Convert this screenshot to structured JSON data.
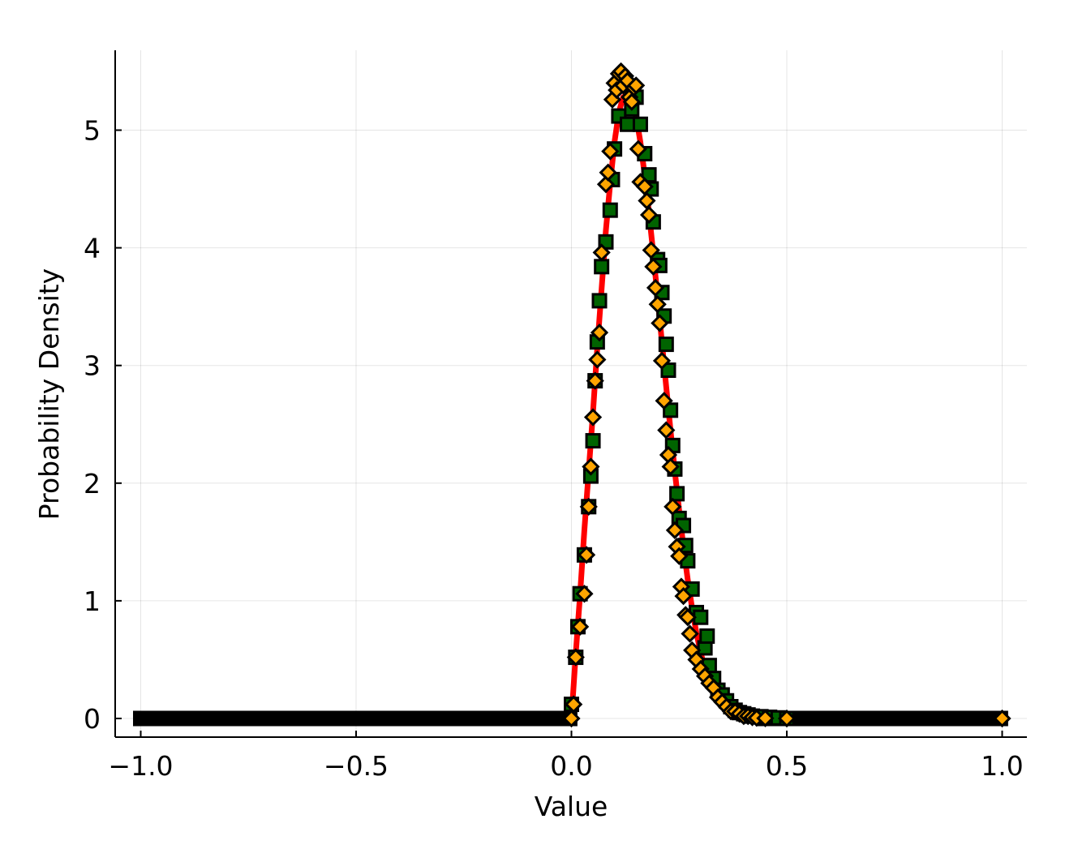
{
  "chart_data": {
    "type": "scatter",
    "title": "",
    "xlabel": "Value",
    "ylabel": "Probability Density",
    "xlim": [
      -1.06,
      1.06
    ],
    "ylim": [
      -0.16,
      5.65
    ],
    "x_ticks": [
      -1.0,
      -0.5,
      0.0,
      0.5,
      1.0
    ],
    "x_tick_labels": [
      "−1.0",
      "−0.5",
      "0.0",
      "0.5",
      "1.0"
    ],
    "y_ticks": [
      0,
      1,
      2,
      3,
      4,
      5
    ],
    "y_tick_labels": [
      "0",
      "1",
      "2",
      "3",
      "4",
      "5"
    ],
    "grid": true,
    "legend": "none",
    "series": [
      {
        "type": "line",
        "color": "#ff0000",
        "x": [
          0.0,
          0.01,
          0.02,
          0.03,
          0.04,
          0.05,
          0.06,
          0.07,
          0.08,
          0.09,
          0.1,
          0.11,
          0.12,
          0.13,
          0.14,
          0.15,
          0.16,
          0.17,
          0.18,
          0.19,
          0.2,
          0.21,
          0.22,
          0.23,
          0.24,
          0.25,
          0.26,
          0.27,
          0.28,
          0.29,
          0.3,
          0.31,
          0.32,
          0.33,
          0.34,
          0.35,
          0.36,
          0.37,
          0.38,
          0.39,
          0.4,
          0.42,
          0.44,
          0.46,
          0.5
        ],
        "y": [
          0.0,
          0.55,
          1.05,
          1.6,
          2.1,
          2.6,
          3.15,
          3.65,
          4.15,
          4.55,
          4.9,
          5.15,
          5.28,
          5.3,
          5.25,
          5.12,
          4.9,
          4.62,
          4.3,
          3.95,
          3.58,
          3.2,
          2.82,
          2.45,
          2.1,
          1.77,
          1.46,
          1.18,
          0.94,
          0.73,
          0.56,
          0.42,
          0.3,
          0.21,
          0.15,
          0.1,
          0.07,
          0.045,
          0.03,
          0.02,
          0.012,
          0.005,
          0.002,
          0.001,
          0.0
        ]
      },
      {
        "type": "scatter",
        "marker": "square",
        "color": "#006400",
        "x": [
          0.0,
          0.01,
          0.015,
          0.02,
          0.03,
          0.04,
          0.045,
          0.05,
          0.055,
          0.06,
          0.065,
          0.07,
          0.08,
          0.09,
          0.095,
          0.1,
          0.11,
          0.12,
          0.13,
          0.14,
          0.15,
          0.16,
          0.17,
          0.18,
          0.185,
          0.19,
          0.2,
          0.205,
          0.21,
          0.215,
          0.22,
          0.225,
          0.23,
          0.235,
          0.24,
          0.245,
          0.25,
          0.26,
          0.265,
          0.27,
          0.28,
          0.29,
          0.3,
          0.31,
          0.315,
          0.32,
          0.33,
          0.34,
          0.35,
          0.36,
          0.37,
          0.38,
          0.39,
          0.4,
          0.41,
          0.42,
          0.44,
          0.46,
          0.48,
          0.5
        ],
        "y": [
          0.12,
          0.52,
          0.78,
          1.06,
          1.39,
          1.8,
          2.06,
          2.36,
          2.87,
          3.2,
          3.55,
          3.84,
          4.05,
          4.32,
          4.58,
          4.84,
          5.12,
          5.38,
          5.05,
          5.18,
          5.28,
          5.05,
          4.8,
          4.62,
          4.5,
          4.22,
          3.9,
          3.85,
          3.62,
          3.42,
          3.18,
          2.96,
          2.62,
          2.32,
          2.12,
          1.91,
          1.7,
          1.64,
          1.47,
          1.34,
          1.1,
          0.9,
          0.86,
          0.6,
          0.7,
          0.45,
          0.34,
          0.24,
          0.2,
          0.15,
          0.1,
          0.07,
          0.05,
          0.04,
          0.03,
          0.02,
          0.015,
          0.01,
          0.005,
          0.0
        ]
      },
      {
        "type": "scatter",
        "marker": "diamond",
        "color": "#ffa500",
        "x": [
          0.0,
          0.005,
          0.01,
          0.02,
          0.03,
          0.035,
          0.04,
          0.045,
          0.05,
          0.055,
          0.06,
          0.065,
          0.07,
          0.08,
          0.085,
          0.09,
          0.095,
          0.1,
          0.105,
          0.11,
          0.115,
          0.12,
          0.125,
          0.13,
          0.135,
          0.14,
          0.145,
          0.15,
          0.155,
          0.16,
          0.17,
          0.175,
          0.18,
          0.185,
          0.19,
          0.195,
          0.2,
          0.205,
          0.21,
          0.215,
          0.22,
          0.225,
          0.23,
          0.235,
          0.24,
          0.245,
          0.25,
          0.255,
          0.26,
          0.265,
          0.27,
          0.275,
          0.28,
          0.29,
          0.3,
          0.31,
          0.32,
          0.33,
          0.34,
          0.35,
          0.36,
          0.37,
          0.38,
          0.39,
          0.4,
          0.41,
          0.42,
          0.43,
          0.45,
          0.5,
          1.0
        ],
        "y": [
          0.0,
          0.12,
          0.52,
          0.78,
          1.06,
          1.39,
          1.8,
          2.14,
          2.56,
          2.87,
          3.05,
          3.28,
          3.96,
          4.54,
          4.64,
          4.82,
          5.26,
          5.4,
          5.34,
          5.48,
          5.5,
          5.38,
          5.46,
          5.42,
          5.28,
          5.24,
          5.36,
          5.38,
          4.84,
          4.56,
          4.52,
          4.4,
          4.28,
          3.98,
          3.84,
          3.66,
          3.52,
          3.36,
          3.04,
          2.7,
          2.45,
          2.24,
          2.14,
          1.8,
          1.6,
          1.46,
          1.38,
          1.12,
          1.04,
          0.88,
          0.86,
          0.72,
          0.58,
          0.5,
          0.42,
          0.36,
          0.3,
          0.26,
          0.18,
          0.14,
          0.1,
          0.06,
          0.06,
          0.04,
          0.02,
          0.02,
          0.01,
          0.005,
          0.002,
          0.0,
          0.0
        ]
      },
      {
        "type": "scatter",
        "marker": "square",
        "color": "#000000",
        "x_range": [
          -1.0,
          0.0
        ],
        "y": 0.0
      },
      {
        "type": "scatter",
        "marker": "square",
        "color": "#000000",
        "x_range": [
          0.45,
          1.0
        ],
        "y": 0.0
      }
    ]
  }
}
